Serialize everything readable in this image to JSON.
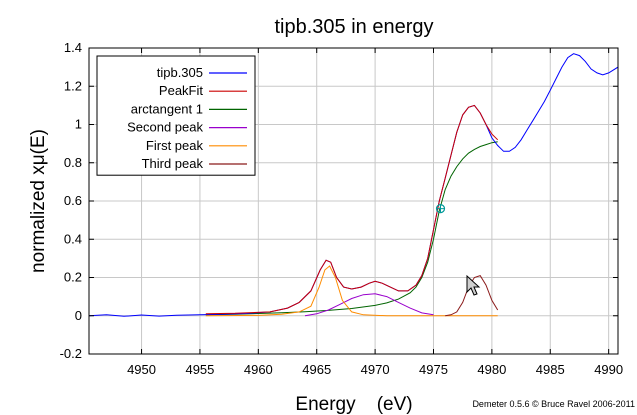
{
  "chart_data": {
    "type": "line",
    "title": "tipb.305 in energy",
    "xlabel": "Energy    (eV)",
    "ylabel": "normalized xμ(E)",
    "xlim": [
      4945.5,
      4990.8
    ],
    "ylim": [
      -0.2,
      1.4
    ],
    "xticks": [
      4950,
      4955,
      4960,
      4965,
      4970,
      4975,
      4980,
      4985,
      4990
    ],
    "yticks": [
      -0.2,
      0,
      0.2,
      0.4,
      0.6,
      0.8,
      1,
      1.2,
      1.4
    ],
    "ytick_labels": [
      "-0.2",
      "0",
      "0.2",
      "0.4",
      "0.6",
      "0.8",
      "1",
      "1.2",
      "1.4"
    ],
    "grid": true,
    "legend_position": "top-left",
    "credit": "Demeter 0.5.6 © Bruce Ravel 2006-2011",
    "marker": {
      "x": 4975.6,
      "y": 0.56
    },
    "series": [
      {
        "name": "tipb.305",
        "color": "#0000ff",
        "x": [
          4945.5,
          4947,
          4948.5,
          4950,
          4951.5,
          4953,
          4955,
          4957,
          4959,
          4961,
          4962.5,
          4963.5,
          4964.5,
          4965.3,
          4965.8,
          4966.2,
          4966.7,
          4967.3,
          4968,
          4968.8,
          4969.5,
          4970,
          4970.6,
          4971.3,
          4972,
          4972.8,
          4973.5,
          4974,
          4974.5,
          4975,
          4975.5,
          4976,
          4976.5,
          4977,
          4977.5,
          4978,
          4978.5,
          4979,
          4979.5,
          4980,
          4980.5,
          4981,
          4981.5,
          4982,
          4982.5,
          4983,
          4983.5,
          4984,
          4984.5,
          4985,
          4985.5,
          4986,
          4986.5,
          4987,
          4987.5,
          4988,
          4988.5,
          4989,
          4989.5,
          4990,
          4990.8
        ],
        "y": [
          0.0,
          0.005,
          -0.003,
          0.004,
          -0.002,
          0.003,
          0.005,
          0.008,
          0.012,
          0.02,
          0.04,
          0.07,
          0.13,
          0.24,
          0.29,
          0.28,
          0.2,
          0.15,
          0.14,
          0.15,
          0.17,
          0.18,
          0.17,
          0.15,
          0.13,
          0.13,
          0.16,
          0.21,
          0.3,
          0.45,
          0.6,
          0.72,
          0.84,
          0.96,
          1.05,
          1.09,
          1.1,
          1.06,
          1.0,
          0.93,
          0.89,
          0.86,
          0.86,
          0.88,
          0.92,
          0.97,
          1.02,
          1.07,
          1.12,
          1.18,
          1.24,
          1.3,
          1.35,
          1.37,
          1.36,
          1.33,
          1.29,
          1.27,
          1.26,
          1.27,
          1.3
        ]
      },
      {
        "name": "PeakFit",
        "color": "#cc0000",
        "x": [
          4955.5,
          4958,
          4961,
          4962.5,
          4963.5,
          4964.5,
          4965.3,
          4965.8,
          4966.2,
          4966.7,
          4967.3,
          4968,
          4968.8,
          4969.5,
          4970,
          4970.6,
          4971.3,
          4972,
          4972.8,
          4973.5,
          4974,
          4974.5,
          4975,
          4975.5,
          4976,
          4976.5,
          4977,
          4977.5,
          4978,
          4978.5,
          4979,
          4979.5,
          4980,
          4980.5
        ],
        "y": [
          0.01,
          0.013,
          0.02,
          0.04,
          0.07,
          0.13,
          0.24,
          0.29,
          0.28,
          0.2,
          0.15,
          0.14,
          0.15,
          0.17,
          0.18,
          0.17,
          0.15,
          0.13,
          0.13,
          0.16,
          0.21,
          0.3,
          0.45,
          0.6,
          0.72,
          0.84,
          0.96,
          1.05,
          1.09,
          1.1,
          1.06,
          1.0,
          0.95,
          0.92
        ]
      },
      {
        "name": "arctangent 1",
        "color": "#006400",
        "x": [
          4955.5,
          4958,
          4960,
          4962,
          4964,
          4966,
          4968,
          4970,
          4971,
          4972,
          4973,
          4973.5,
          4974,
          4974.5,
          4975,
          4975.5,
          4976,
          4976.5,
          4977,
          4977.5,
          4978,
          4978.5,
          4979,
          4979.5,
          4980,
          4980.5
        ],
        "y": [
          0.005,
          0.008,
          0.012,
          0.016,
          0.021,
          0.028,
          0.038,
          0.054,
          0.067,
          0.087,
          0.12,
          0.15,
          0.2,
          0.28,
          0.4,
          0.55,
          0.66,
          0.73,
          0.78,
          0.82,
          0.85,
          0.87,
          0.885,
          0.895,
          0.905,
          0.91
        ]
      },
      {
        "name": "Second peak",
        "color": "#9900cc",
        "x": [
          4964,
          4965,
          4966,
          4967,
          4968,
          4969,
          4970,
          4971,
          4972,
          4973,
          4974,
          4975
        ],
        "y": [
          0.0,
          0.01,
          0.03,
          0.06,
          0.09,
          0.11,
          0.115,
          0.1,
          0.07,
          0.04,
          0.015,
          0.005
        ]
      },
      {
        "name": "First peak",
        "color": "#ff8c00",
        "x": [
          4955.5,
          4960,
          4962,
          4963.5,
          4964.5,
          4965.2,
          4965.7,
          4966.1,
          4966.6,
          4967.2,
          4968,
          4969,
          4971,
          4975,
          4980.5
        ],
        "y": [
          0.0,
          0.002,
          0.008,
          0.02,
          0.05,
          0.15,
          0.24,
          0.26,
          0.2,
          0.08,
          0.02,
          0.005,
          0.0,
          0.0,
          0.0
        ]
      },
      {
        "name": "Third peak",
        "color": "#8b1a1a",
        "x": [
          4976,
          4976.5,
          4977,
          4977.5,
          4978,
          4978.5,
          4979,
          4979.5,
          4980,
          4980.5
        ],
        "y": [
          0.0,
          0.005,
          0.02,
          0.07,
          0.15,
          0.2,
          0.21,
          0.16,
          0.08,
          0.03
        ]
      }
    ]
  }
}
